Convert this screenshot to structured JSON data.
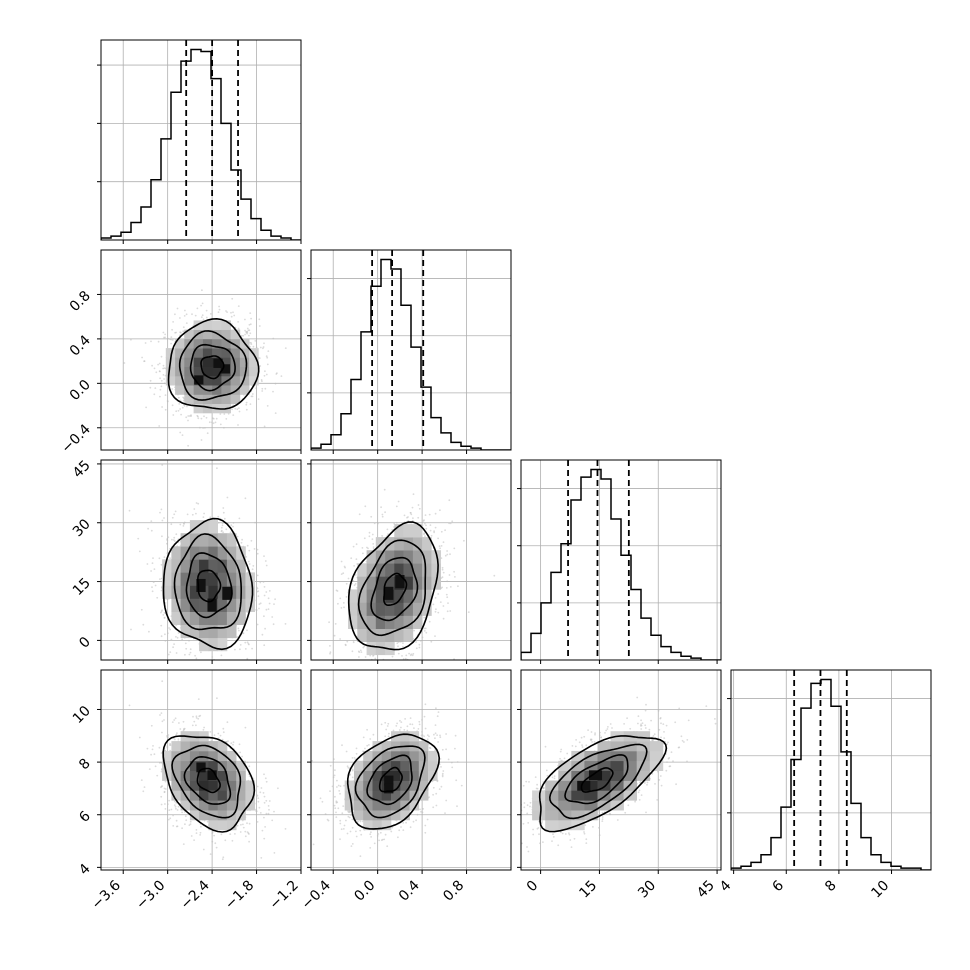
{
  "chart_data": {
    "type": "corner",
    "title": "",
    "parameters": [
      {
        "index": 0,
        "range": [
          -3.9,
          -1.2
        ],
        "ticks": [
          -3.6,
          -3.0,
          -2.4,
          -1.8,
          -1.2
        ],
        "tick_labels": [
          "−3.6",
          "−3.0",
          "−2.4",
          "−1.8",
          "−1.2"
        ],
        "quantiles": [
          -2.75,
          -2.4,
          -2.05
        ],
        "hist": {
          "edges_start": -3.9,
          "bin_width": 0.135,
          "counts": [
            1,
            2,
            4,
            9,
            17,
            31,
            52,
            76,
            92,
            98,
            97,
            83,
            60,
            36,
            21,
            11,
            5,
            2,
            1,
            0
          ]
        },
        "hist_yticks": [
          30,
          60,
          90
        ]
      },
      {
        "index": 1,
        "range": [
          -0.6,
          1.2
        ],
        "ticks": [
          -0.4,
          0.0,
          0.4,
          0.8
        ],
        "tick_labels": [
          "−0.4",
          "0.0",
          "0.4",
          "0.8"
        ],
        "quantiles": [
          -0.05,
          0.13,
          0.41
        ],
        "hist": {
          "edges_start": -0.6,
          "bin_width": 0.09,
          "counts": [
            1,
            3,
            8,
            19,
            37,
            62,
            86,
            100,
            95,
            76,
            54,
            33,
            17,
            9,
            4,
            2,
            1,
            0,
            0,
            0
          ]
        },
        "hist_yticks": [
          30,
          60,
          90
        ]
      },
      {
        "index": 2,
        "range": [
          -5,
          46
        ],
        "ticks": [
          0,
          15,
          30,
          45
        ],
        "tick_labels": [
          "0",
          "15",
          "30",
          "45"
        ],
        "quantiles": [
          7,
          14.5,
          22.5
        ],
        "hist": {
          "edges_start": -5,
          "bin_width": 2.55,
          "counts": [
            4,
            14,
            30,
            46,
            61,
            84,
            96,
            100,
            95,
            74,
            55,
            37,
            22,
            13,
            7,
            4,
            2,
            1,
            0,
            0
          ]
        },
        "hist_yticks": [
          30,
          60,
          90
        ]
      },
      {
        "index": 3,
        "range": [
          3.9,
          11.5
        ],
        "ticks": [
          4,
          6,
          8,
          10
        ],
        "tick_labels": [
          "4",
          "6",
          "8",
          "10"
        ],
        "quantiles": [
          6.3,
          7.3,
          8.3
        ],
        "hist": {
          "edges_start": 3.9,
          "bin_width": 0.38,
          "counts": [
            1,
            2,
            4,
            8,
            17,
            33,
            58,
            85,
            98,
            100,
            86,
            62,
            35,
            17,
            8,
            4,
            2,
            1,
            1,
            0
          ]
        },
        "hist_yticks": [
          30,
          60,
          90
        ]
      }
    ],
    "pairs": [
      {
        "row": 1,
        "col": 0,
        "mean": [
          -2.4,
          0.15
        ],
        "sd": [
          0.3,
          0.2
        ],
        "rho": 0.0,
        "peaks": [
          [
            -2.32,
            0.18
          ],
          [
            -2.58,
            0.03
          ],
          [
            -2.22,
            0.13
          ]
        ]
      },
      {
        "row": 2,
        "col": 0,
        "mean": [
          -2.45,
          14
        ],
        "sd": [
          0.3,
          8
        ],
        "rho": -0.05,
        "peaks": [
          [
            -2.55,
            14
          ],
          [
            -2.4,
            9
          ],
          [
            -2.2,
            12
          ]
        ]
      },
      {
        "row": 2,
        "col": 1,
        "mean": [
          0.15,
          13
        ],
        "sd": [
          0.2,
          8
        ],
        "rho": 0.3,
        "peaks": [
          [
            0.1,
            12
          ],
          [
            0.2,
            15
          ]
        ]
      },
      {
        "row": 3,
        "col": 0,
        "mean": [
          -2.45,
          7.3
        ],
        "sd": [
          0.3,
          0.9
        ],
        "rho": -0.3,
        "peaks": [
          [
            -2.55,
            7.8
          ],
          [
            -2.4,
            7.5
          ]
        ]
      },
      {
        "row": 3,
        "col": 1,
        "mean": [
          0.12,
          7.3
        ],
        "sd": [
          0.2,
          0.9
        ],
        "rho": 0.35,
        "peaks": [
          [
            0.1,
            7.3
          ],
          [
            0.1,
            7.0
          ]
        ]
      },
      {
        "row": 3,
        "col": 2,
        "mean": [
          14.5,
          7.3
        ],
        "sd": [
          8,
          0.9
        ],
        "rho": 0.62,
        "peaks": [
          [
            14,
            7.5
          ],
          [
            11,
            7.1
          ]
        ]
      }
    ],
    "contour_levels_sigma": [
      0.5,
      1.0,
      1.5,
      2.0
    ],
    "grid": true,
    "colors": {
      "scatter": "#bdbdbd",
      "line": "#000000",
      "hist_cell": "#595959",
      "grid": "#b0b0b0"
    }
  }
}
